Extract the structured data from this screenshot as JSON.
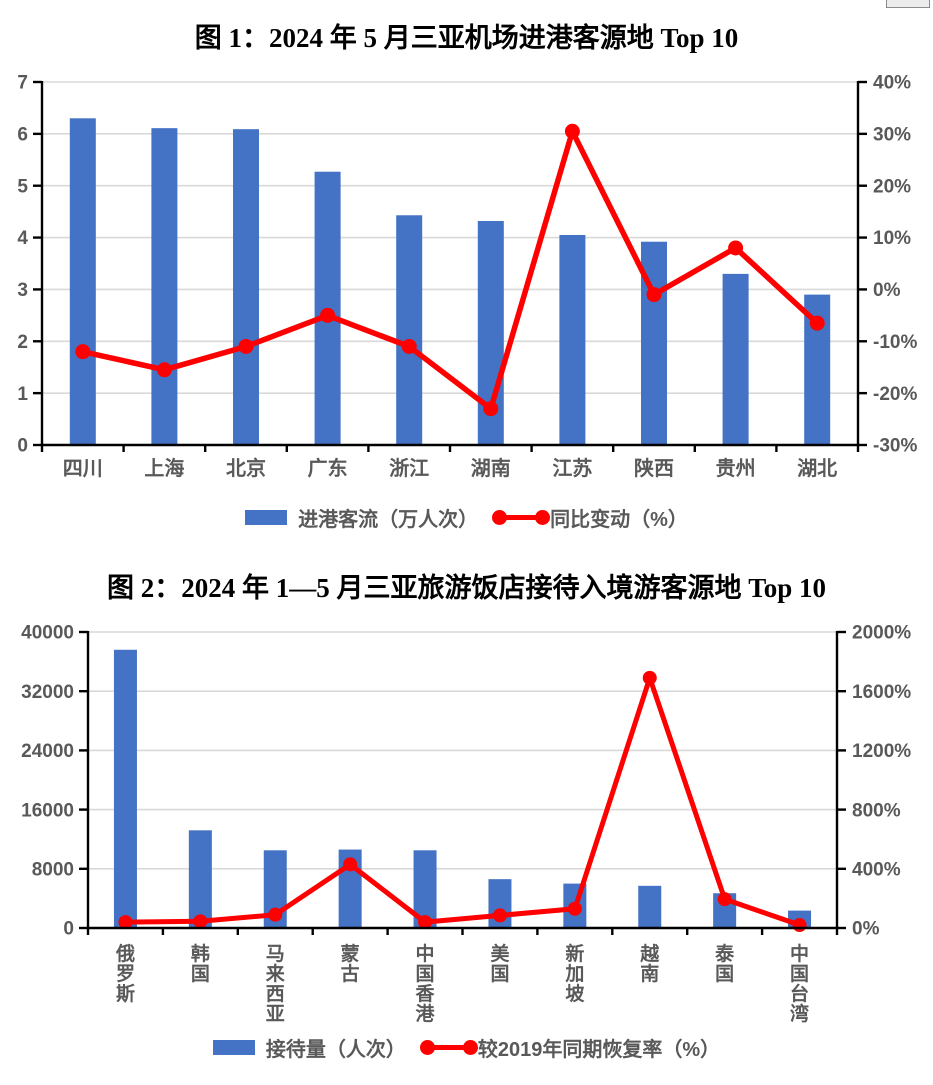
{
  "page": {
    "background": "#ffffff"
  },
  "colors": {
    "bar": "#4472C4",
    "line": "#FF0000",
    "axis": "#000000",
    "grid": "#D9D9D9",
    "tick_text": "#595959",
    "title_text": "#000000"
  },
  "chart_data": [
    {
      "type": "bar",
      "subtype": "combo-bar-line-dual-axis",
      "title": "图 1：2024 年 5 月三亚机场进港客源地 Top 10",
      "categories": [
        "四川",
        "上海",
        "北京",
        "广东",
        "浙江",
        "湖南",
        "江苏",
        "陕西",
        "贵州",
        "湖北"
      ],
      "series": [
        {
          "name": "进港客流（万人次）",
          "chart": "bar",
          "axis": "left",
          "color": "#4472C4",
          "values": [
            6.3,
            6.11,
            6.09,
            5.27,
            4.43,
            4.32,
            4.05,
            3.92,
            3.3,
            2.9
          ]
        },
        {
          "name": "同比变动（%）",
          "chart": "line",
          "axis": "right",
          "color": "#FF0000",
          "values": [
            -12,
            -15.5,
            -11,
            -5,
            -11,
            -23,
            30.5,
            -1,
            8,
            -6.5
          ]
        }
      ],
      "left_axis": {
        "min": 0,
        "max": 7,
        "step": 1,
        "suffix": "",
        "tick_labels": [
          "0",
          "1",
          "2",
          "3",
          "4",
          "5",
          "6",
          "7"
        ]
      },
      "right_axis": {
        "min": -30,
        "max": 40,
        "step": 10,
        "suffix": "%",
        "tick_labels": [
          "-30%",
          "-20%",
          "-10%",
          "0%",
          "10%",
          "20%",
          "30%",
          "40%"
        ]
      },
      "grid": true,
      "legend_position": "bottom",
      "category_orientation": "horizontal",
      "xlabel": "",
      "ylabel_left": "进港客流（万人次）",
      "ylabel_right": "同比变动（%）"
    },
    {
      "type": "bar",
      "subtype": "combo-bar-line-dual-axis",
      "title": "图 2：2024 年 1—5 月三亚旅游饭店接待入境游客源地 Top 10",
      "categories": [
        "俄罗斯",
        "韩国",
        "马来西亚",
        "蒙古",
        "中国香港",
        "美国",
        "新加坡",
        "越南",
        "泰国",
        "中国台湾"
      ],
      "series": [
        {
          "name": "接待量（人次）",
          "chart": "bar",
          "axis": "left",
          "color": "#4472C4",
          "values": [
            37600,
            13200,
            10500,
            10600,
            10500,
            6600,
            6000,
            5700,
            4700,
            2350
          ]
        },
        {
          "name": "较2019年同期恢复率（%）",
          "chart": "line",
          "axis": "right",
          "color": "#FF0000",
          "values": [
            40,
            45,
            90,
            430,
            40,
            85,
            130,
            1690,
            195,
            20
          ]
        }
      ],
      "left_axis": {
        "min": 0,
        "max": 40000,
        "step": 8000,
        "suffix": "",
        "tick_labels": [
          "0",
          "8000",
          "16000",
          "24000",
          "32000",
          "40000"
        ]
      },
      "right_axis": {
        "min": 0,
        "max": 2000,
        "step": 400,
        "suffix": "%",
        "tick_labels": [
          "0%",
          "400%",
          "800%",
          "1200%",
          "1600%",
          "2000%"
        ]
      },
      "grid": true,
      "legend_position": "bottom",
      "category_orientation": "vertical",
      "xlabel": "",
      "ylabel_left": "接待量（人次）",
      "ylabel_right": "较2019年同期恢复率（%）"
    }
  ]
}
